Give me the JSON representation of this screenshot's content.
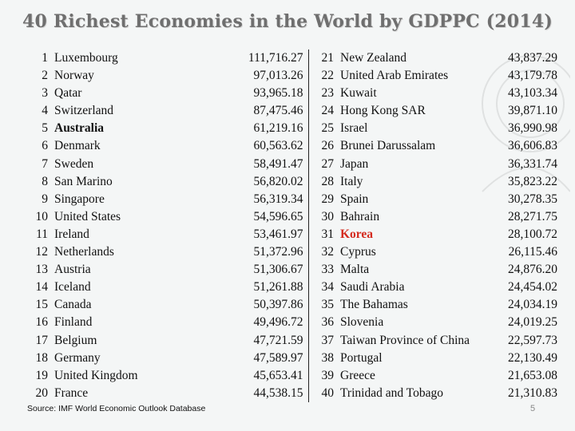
{
  "title": "40 Richest Economies in the World by GDPPC (2014)",
  "source": "Source: IMF World Economic Outlook Database",
  "page_number": "5",
  "columns": [
    {
      "rows": [
        {
          "rank": "1",
          "country": "Luxembourg",
          "gdppc": "111,716.27",
          "style": ""
        },
        {
          "rank": "2",
          "country": "Norway",
          "gdppc": "97,013.26",
          "style": ""
        },
        {
          "rank": "3",
          "country": "Qatar",
          "gdppc": "93,965.18",
          "style": ""
        },
        {
          "rank": "4",
          "country": "Switzerland",
          "gdppc": "87,475.46",
          "style": ""
        },
        {
          "rank": "5",
          "country": "Australia",
          "gdppc": "61,219.16",
          "style": "bold"
        },
        {
          "rank": "6",
          "country": "Denmark",
          "gdppc": "60,563.62",
          "style": ""
        },
        {
          "rank": "7",
          "country": "Sweden",
          "gdppc": "58,491.47",
          "style": ""
        },
        {
          "rank": "8",
          "country": "San Marino",
          "gdppc": "56,820.02",
          "style": ""
        },
        {
          "rank": "9",
          "country": "Singapore",
          "gdppc": "56,319.34",
          "style": ""
        },
        {
          "rank": "10",
          "country": "United States",
          "gdppc": "54,596.65",
          "style": ""
        },
        {
          "rank": "11",
          "country": "Ireland",
          "gdppc": "53,461.97",
          "style": ""
        },
        {
          "rank": "12",
          "country": "Netherlands",
          "gdppc": "51,372.96",
          "style": ""
        },
        {
          "rank": "13",
          "country": "Austria",
          "gdppc": "51,306.67",
          "style": ""
        },
        {
          "rank": "14",
          "country": "Iceland",
          "gdppc": "51,261.88",
          "style": ""
        },
        {
          "rank": "15",
          "country": "Canada",
          "gdppc": "50,397.86",
          "style": ""
        },
        {
          "rank": "16",
          "country": "Finland",
          "gdppc": "49,496.72",
          "style": ""
        },
        {
          "rank": "17",
          "country": "Belgium",
          "gdppc": "47,721.59",
          "style": ""
        },
        {
          "rank": "18",
          "country": "Germany",
          "gdppc": "47,589.97",
          "style": ""
        },
        {
          "rank": "19",
          "country": "United Kingdom",
          "gdppc": "45,653.41",
          "style": ""
        },
        {
          "rank": "20",
          "country": "France",
          "gdppc": "44,538.15",
          "style": ""
        }
      ]
    },
    {
      "rows": [
        {
          "rank": "21",
          "country": "New Zealand",
          "gdppc": "43,837.29",
          "style": ""
        },
        {
          "rank": "22",
          "country": "United Arab Emirates",
          "gdppc": "43,179.78",
          "style": ""
        },
        {
          "rank": "23",
          "country": "Kuwait",
          "gdppc": "43,103.34",
          "style": ""
        },
        {
          "rank": "24",
          "country": "Hong Kong SAR",
          "gdppc": "39,871.10",
          "style": ""
        },
        {
          "rank": "25",
          "country": "Israel",
          "gdppc": "36,990.98",
          "style": ""
        },
        {
          "rank": "26",
          "country": "Brunei Darussalam",
          "gdppc": "36,606.83",
          "style": ""
        },
        {
          "rank": "27",
          "country": "Japan",
          "gdppc": "36,331.74",
          "style": ""
        },
        {
          "rank": "28",
          "country": "Italy",
          "gdppc": "35,823.22",
          "style": ""
        },
        {
          "rank": "29",
          "country": "Spain",
          "gdppc": "30,278.35",
          "style": ""
        },
        {
          "rank": "30",
          "country": "Bahrain",
          "gdppc": "28,271.75",
          "style": ""
        },
        {
          "rank": "31",
          "country": "Korea",
          "gdppc": "28,100.72",
          "style": "red"
        },
        {
          "rank": "32",
          "country": "Cyprus",
          "gdppc": "26,115.46",
          "style": ""
        },
        {
          "rank": "33",
          "country": "Malta",
          "gdppc": "24,876.20",
          "style": ""
        },
        {
          "rank": "34",
          "country": "Saudi Arabia",
          "gdppc": "24,454.02",
          "style": ""
        },
        {
          "rank": "35",
          "country": "The Bahamas",
          "gdppc": "24,034.19",
          "style": ""
        },
        {
          "rank": "36",
          "country": "Slovenia",
          "gdppc": "24,019.25",
          "style": ""
        },
        {
          "rank": "37",
          "country": "Taiwan Province of China",
          "gdppc": "22,597.73",
          "style": ""
        },
        {
          "rank": "38",
          "country": "Portugal",
          "gdppc": "22,130.49",
          "style": ""
        },
        {
          "rank": "39",
          "country": "Greece",
          "gdppc": "21,653.08",
          "style": ""
        },
        {
          "rank": "40",
          "country": "Trinidad and Tobago",
          "gdppc": "21,310.83",
          "style": ""
        }
      ]
    }
  ],
  "colors": {
    "title": "#6f6f6f",
    "highlight": "#d42a1e",
    "background": "#f4f6f6"
  }
}
